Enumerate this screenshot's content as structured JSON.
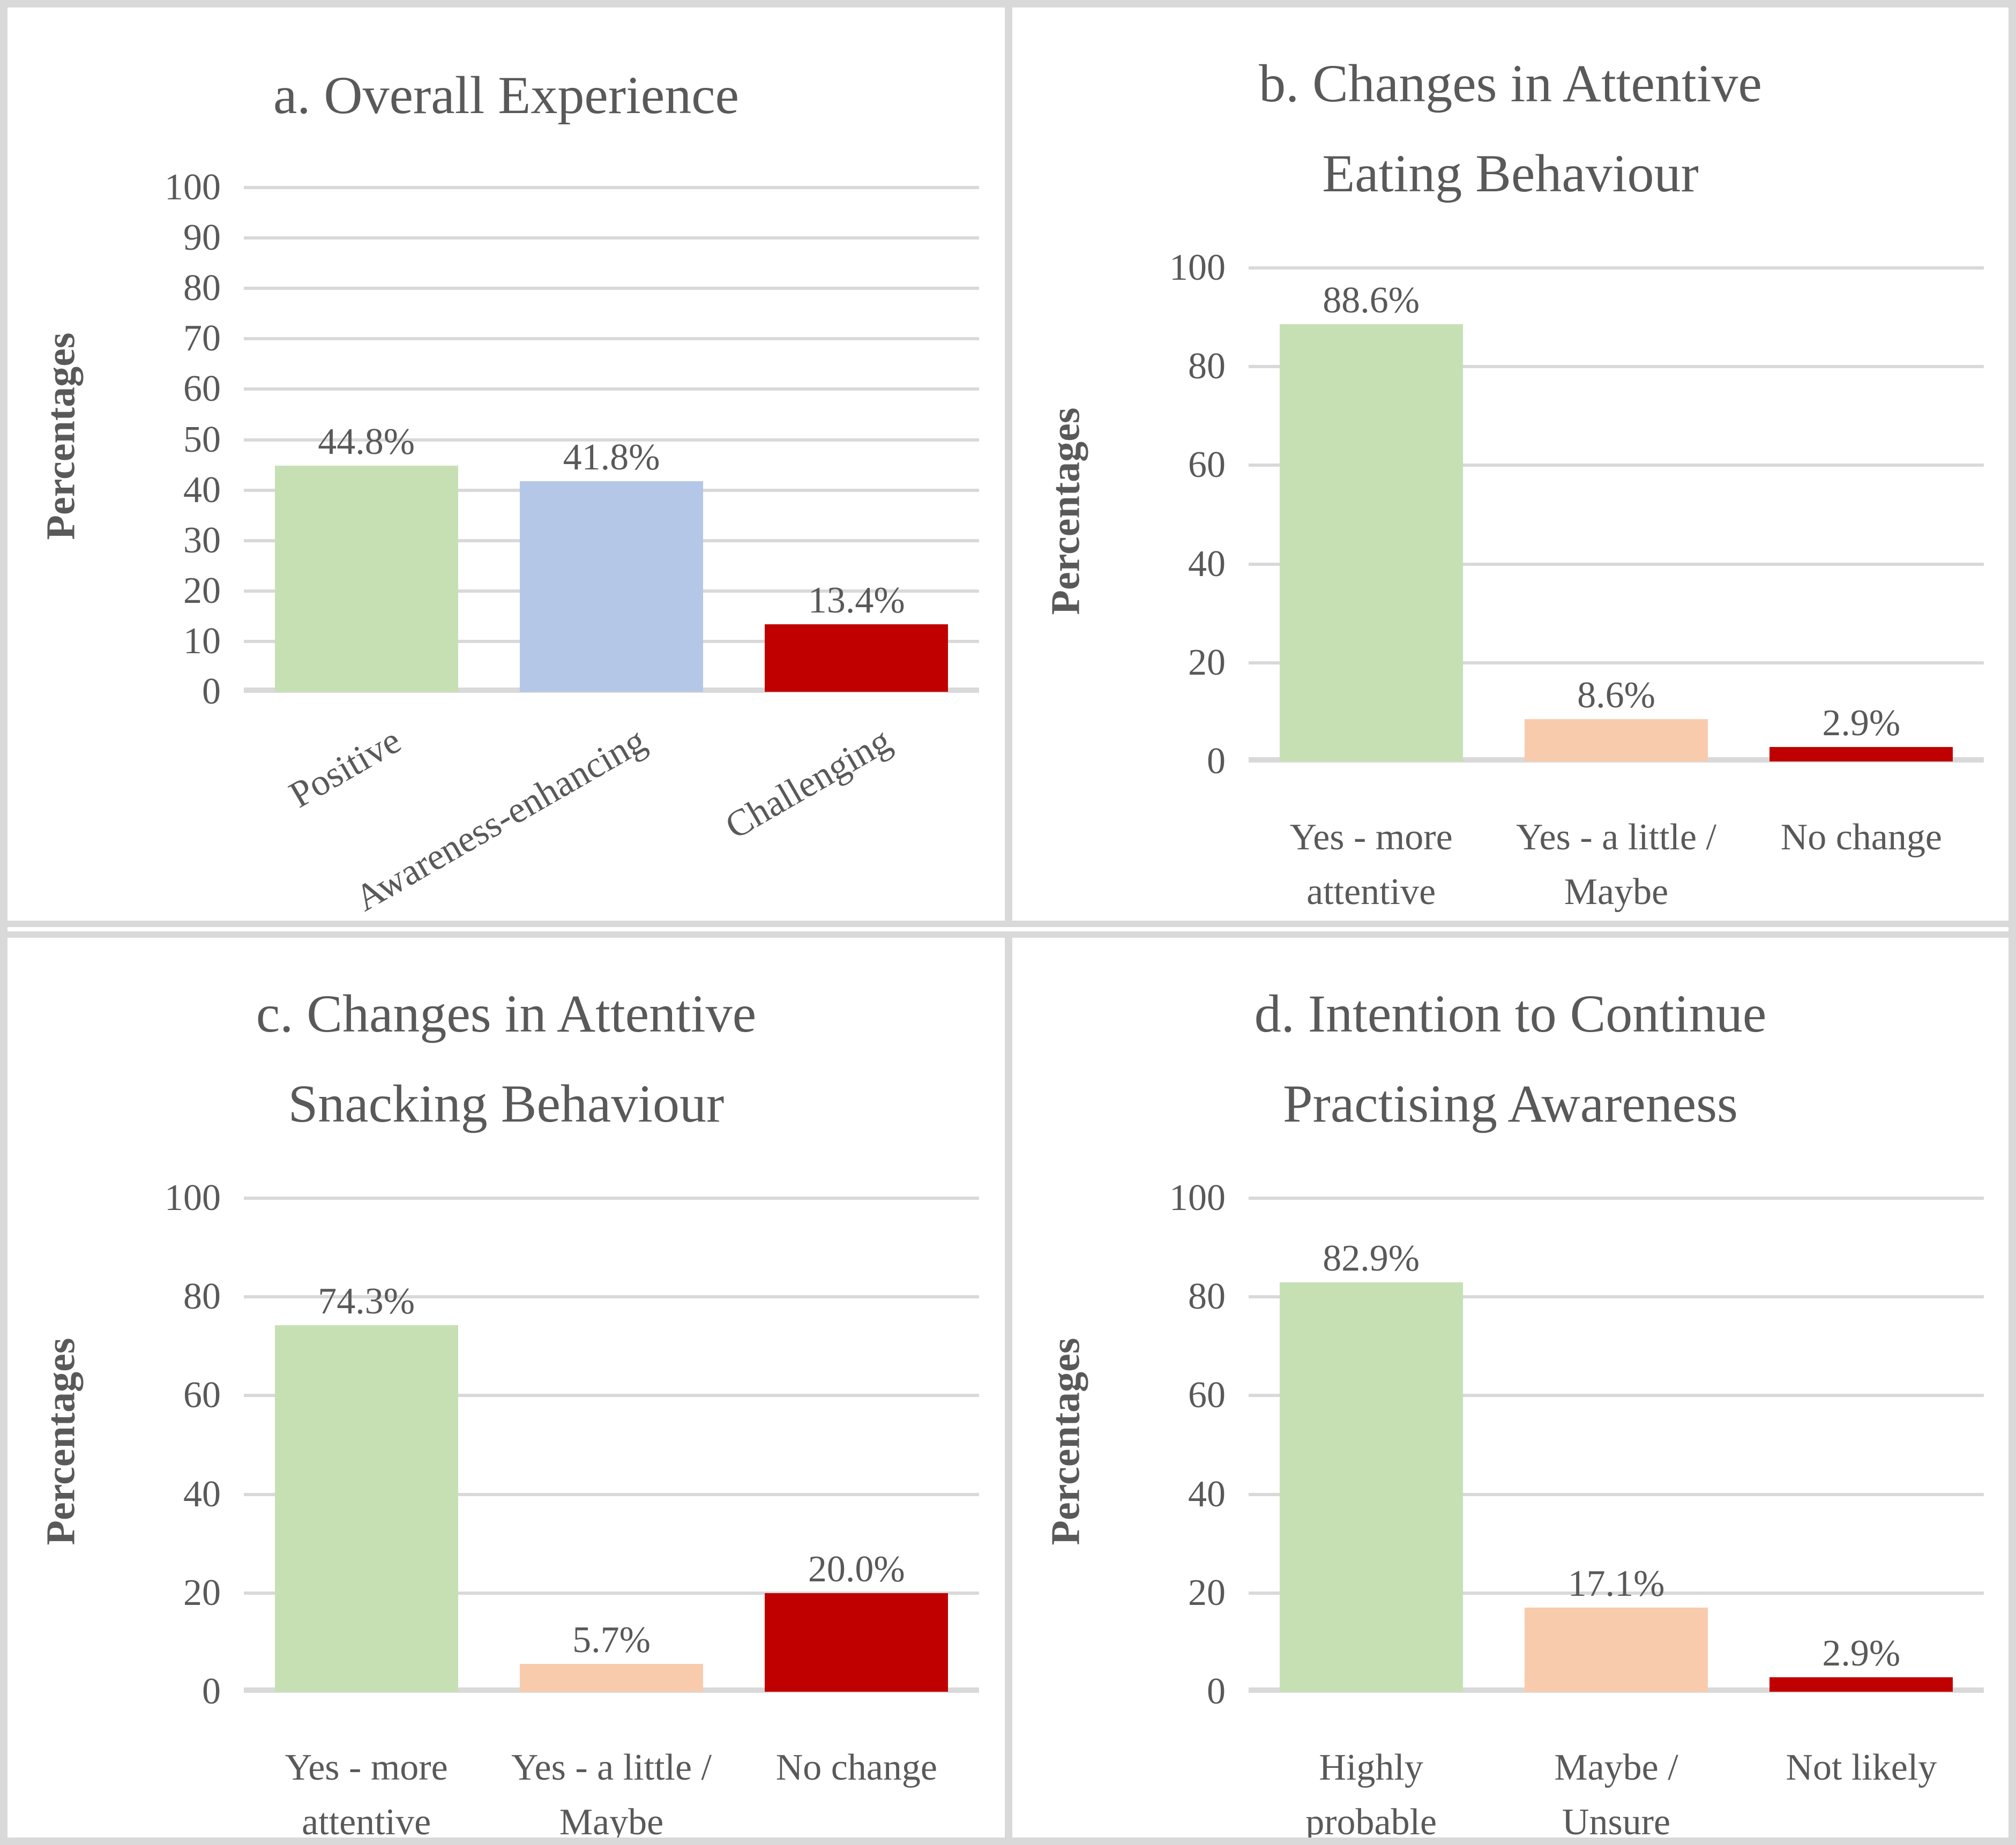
{
  "figure": {
    "background": "#ffffff",
    "text_color": "#595959",
    "grid_color": "#d9d9d9",
    "border_color": "#d9d9d9"
  },
  "chart_data": [
    {
      "type": "bar",
      "title": "a. Overall Experience",
      "title_lines": [
        "a. Overall Experience"
      ],
      "xlabel": "",
      "ylabel": "Percentages",
      "ylim": [
        0,
        100
      ],
      "yticks": [
        100,
        90,
        80,
        70,
        60,
        50,
        40,
        30,
        20,
        10,
        0
      ],
      "grid": true,
      "legend": false,
      "rotated_category_labels": true,
      "categories": [
        "Positive",
        "Awareness-enhancing",
        "Challenging"
      ],
      "category_lines": [
        [
          "Positive"
        ],
        [
          "Awareness-enhancing"
        ],
        [
          "Challenging"
        ]
      ],
      "values": [
        44.8,
        41.8,
        13.4
      ],
      "data_labels": [
        "44.8%",
        "41.8%",
        "13.4%"
      ],
      "bar_colors": [
        "#c6e0b4",
        "#b4c7e7",
        "#c00000"
      ]
    },
    {
      "type": "bar",
      "title": "b. Changes in Attentive Eating Behaviour",
      "title_lines": [
        "b. Changes in Attentive",
        "Eating Behaviour"
      ],
      "xlabel": "",
      "ylabel": "Percentages",
      "ylim": [
        0,
        100
      ],
      "yticks": [
        100,
        80,
        60,
        40,
        20,
        0
      ],
      "grid": true,
      "legend": false,
      "rotated_category_labels": false,
      "categories": [
        "Yes - more attentive",
        "Yes - a little / Maybe",
        "No change"
      ],
      "category_lines": [
        [
          "Yes - more",
          "attentive"
        ],
        [
          "Yes - a little /",
          "Maybe"
        ],
        [
          "No change"
        ]
      ],
      "values": [
        88.6,
        8.6,
        2.9
      ],
      "data_labels": [
        "88.6%",
        "8.6%",
        "2.9%"
      ],
      "bar_colors": [
        "#c6e0b4",
        "#f8cbad",
        "#c00000"
      ]
    },
    {
      "type": "bar",
      "title": "c. Changes in Attentive Snacking Behaviour",
      "title_lines": [
        "c. Changes in Attentive",
        "Snacking Behaviour"
      ],
      "xlabel": "",
      "ylabel": "Percentages",
      "ylim": [
        0,
        100
      ],
      "yticks": [
        100,
        80,
        60,
        40,
        20,
        0
      ],
      "grid": true,
      "legend": false,
      "rotated_category_labels": false,
      "categories": [
        "Yes - more attentive",
        "Yes - a little / Maybe",
        "No change"
      ],
      "category_lines": [
        [
          "Yes - more",
          "attentive"
        ],
        [
          "Yes - a little /",
          "Maybe"
        ],
        [
          "No change"
        ]
      ],
      "values": [
        74.3,
        5.7,
        20.0
      ],
      "data_labels": [
        "74.3%",
        "5.7%",
        "20.0%"
      ],
      "bar_colors": [
        "#c6e0b4",
        "#f8cbad",
        "#c00000"
      ]
    },
    {
      "type": "bar",
      "title": "d. Intention to Continue Practising Awareness",
      "title_lines": [
        "d. Intention to Continue",
        "Practising Awareness"
      ],
      "xlabel": "",
      "ylabel": "Percentages",
      "ylim": [
        0,
        100
      ],
      "yticks": [
        100,
        80,
        60,
        40,
        20,
        0
      ],
      "grid": true,
      "legend": false,
      "rotated_category_labels": false,
      "categories": [
        "Highly probable",
        "Maybe / Unsure",
        "Not likely"
      ],
      "category_lines": [
        [
          "Highly",
          "probable"
        ],
        [
          "Maybe /",
          "Unsure"
        ],
        [
          "Not likely"
        ]
      ],
      "values": [
        82.9,
        17.1,
        2.9
      ],
      "data_labels": [
        "82.9%",
        "17.1%",
        "2.9%"
      ],
      "bar_colors": [
        "#c6e0b4",
        "#f8cbad",
        "#c00000"
      ]
    }
  ]
}
